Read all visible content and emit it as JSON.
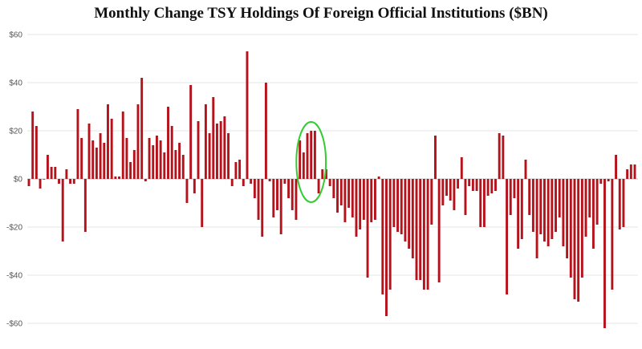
{
  "chart_data": {
    "type": "bar",
    "title": "Monthly Change TSY Holdings Of Foreign Official Institutions ($BN)",
    "xlabel": "",
    "ylabel": "",
    "ylim": [
      -65,
      60
    ],
    "yticks": [
      60,
      40,
      20,
      0,
      -20,
      -40,
      -60
    ],
    "ytick_labels": [
      "$60",
      "$40",
      "$20",
      "$0",
      "-$20",
      "-$40",
      "-$60"
    ],
    "grid": true,
    "colors": {
      "bar": "#b5121b",
      "highlight": "#33cc33",
      "grid": "#e6e6e6"
    },
    "values": [
      -3,
      28,
      22,
      -4,
      0,
      10,
      5,
      5,
      -2,
      -26,
      4,
      -2,
      -2,
      29,
      17,
      -22,
      23,
      16,
      13,
      19,
      15,
      31,
      25,
      1,
      1,
      28,
      17,
      7,
      12,
      31,
      42,
      -1,
      17,
      14,
      18,
      16,
      11,
      30,
      22,
      12,
      15,
      10,
      -10,
      39,
      -6,
      24,
      -20,
      31,
      19,
      34,
      23,
      24,
      26,
      19,
      -3,
      7,
      8,
      -3,
      53,
      -2,
      -8,
      -17,
      -24,
      40,
      -1,
      -16,
      -13,
      -23,
      -2,
      -8,
      -13,
      -17,
      16,
      11,
      19,
      20,
      20,
      -6,
      4,
      4,
      -3,
      -8,
      -14,
      -11,
      -18,
      -12,
      -16,
      -24,
      -21,
      -17,
      -41,
      -18,
      -17,
      1,
      -48,
      -57,
      -46,
      -20,
      -22,
      -23,
      -26,
      -29,
      -33,
      -42,
      -42,
      -46,
      -46,
      -19,
      18,
      -43,
      -11,
      -7,
      -9,
      -13,
      -4,
      9,
      -15,
      -3,
      -5,
      -5,
      -20,
      -20,
      -7,
      -6,
      -5,
      19,
      18,
      -48,
      -15,
      -8,
      -29,
      -25,
      8,
      -15,
      -22,
      -33,
      -23,
      -26,
      -28,
      -25,
      -22,
      -16,
      -28,
      -33,
      -41,
      -50,
      -51,
      -41,
      -24,
      -16,
      -29,
      -19,
      -2,
      -62,
      -1,
      -46,
      10,
      -21,
      -20,
      4,
      6,
      6
    ],
    "highlights": [
      {
        "from": 73,
        "to": 77
      },
      {
        "from": 163,
        "to": 165
      }
    ]
  }
}
